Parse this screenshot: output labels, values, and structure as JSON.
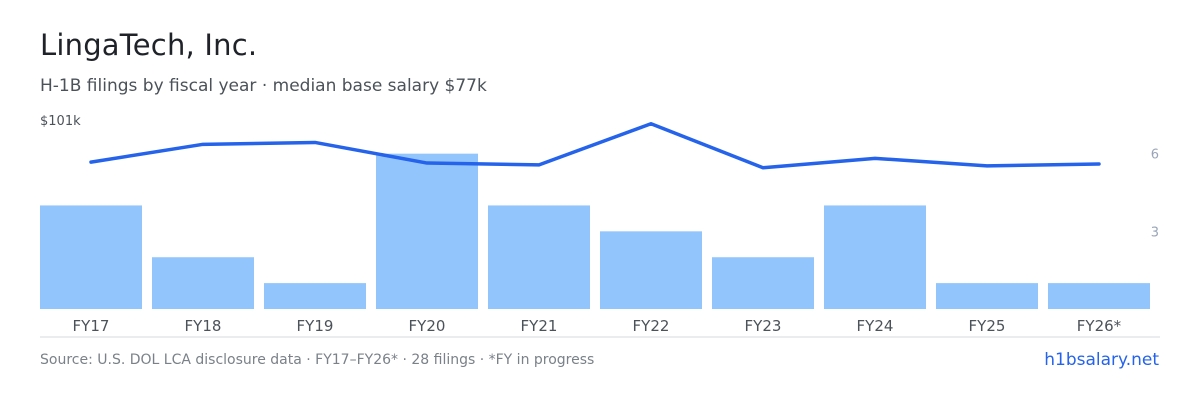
{
  "header": {
    "title": "LingaTech, Inc.",
    "subtitle": "H-1B filings by fiscal year · median base salary $77k"
  },
  "footer": {
    "source": "Source: U.S. DOL LCA disclosure data · FY17–FY26* · 28 filings · *FY in progress",
    "brand": "h1bsalary.net"
  },
  "colors": {
    "bar": "#93c5fd",
    "line": "#2563eb",
    "axis_text": "#4b5259",
    "right_axis_text": "#9aa5b8",
    "baseline": "#d6d9dd"
  },
  "chart_data": {
    "type": "bar",
    "categories": [
      "FY17",
      "FY18",
      "FY19",
      "FY20",
      "FY21",
      "FY22",
      "FY23",
      "FY24",
      "FY25",
      "FY26*"
    ],
    "series": [
      {
        "kind": "bar",
        "axis": "right",
        "values": [
          4,
          2,
          1,
          6,
          4,
          3,
          2,
          4,
          1,
          1
        ]
      },
      {
        "kind": "line",
        "axis": "left",
        "values": [
          78.5,
          88,
          89,
          78,
          77,
          99,
          75.5,
          80.5,
          76.5,
          77.5
        ]
      }
    ],
    "left_axis": {
      "tick_labels": [
        "$101k"
      ],
      "top_value": 101,
      "min": 0
    },
    "right_axis": {
      "tick_labels": [
        "6",
        "3"
      ],
      "ticks": [
        6,
        3
      ],
      "min": 0,
      "max": 7.3
    },
    "grid": false,
    "legend": "none"
  }
}
